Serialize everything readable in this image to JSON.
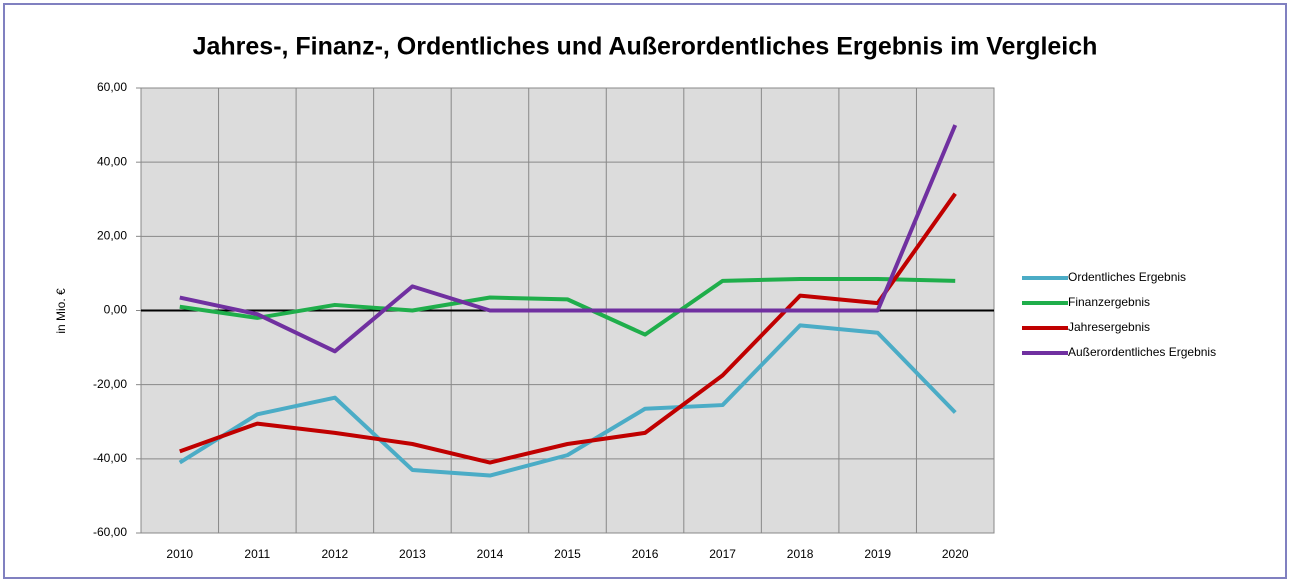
{
  "chart_data": {
    "type": "line",
    "title": "Jahres-, Finanz-, Ordentliches und Außerordentliches Ergebnis im Vergleich",
    "y_label": "in Mio. €",
    "categories": [
      "2010",
      "2011",
      "2012",
      "2013",
      "2014",
      "2015",
      "2016",
      "2017",
      "2018",
      "2019",
      "2020"
    ],
    "series": [
      {
        "name": "Ordentliches Ergebnis",
        "color": "#4bacc6",
        "values": [
          -41,
          -28,
          -23.5,
          -43,
          -44.5,
          -39,
          -26.5,
          -25.5,
          -4,
          -6,
          -27.5
        ]
      },
      {
        "name": "Finanzergebnis",
        "color": "#1fae4b",
        "values": [
          1,
          -2,
          1.5,
          0,
          3.5,
          3,
          -6.5,
          8,
          8.5,
          8.5,
          8
        ]
      },
      {
        "name": "Jahresergebnis",
        "color": "#c00000",
        "values": [
          -38,
          -30.5,
          -33,
          -36,
          -41,
          -36,
          -33,
          -17.5,
          4,
          2,
          31.5
        ]
      },
      {
        "name": "Außerordentliches Ergebnis",
        "color": "#7030a0",
        "values": [
          3.5,
          -1,
          -11,
          6.5,
          0,
          0,
          0,
          0,
          0,
          0,
          50
        ]
      }
    ],
    "ylim": [
      -60,
      60
    ],
    "yticks": [
      {
        "value": -60,
        "label": "-60,00"
      },
      {
        "value": -40,
        "label": "-40,00"
      },
      {
        "value": -20,
        "label": "-20,00"
      },
      {
        "value": 0,
        "label": "0,00"
      },
      {
        "value": 20,
        "label": "20,00"
      },
      {
        "value": 40,
        "label": "40,00"
      },
      {
        "value": 60,
        "label": "60,00"
      }
    ],
    "grid": true,
    "legend": "right"
  }
}
